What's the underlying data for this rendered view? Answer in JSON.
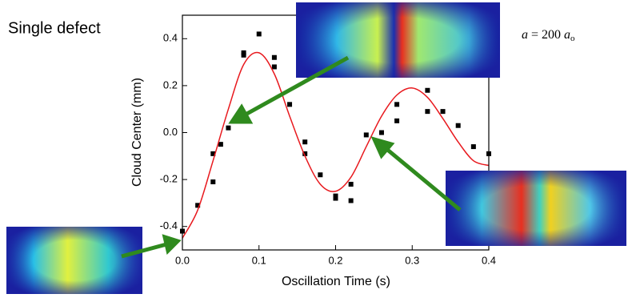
{
  "chart_data": {
    "type": "scatter",
    "title": "Single defect",
    "annotation": {
      "symbol": "a",
      "equals": "= 200",
      "unit": "a",
      "unit_subscript": "o"
    },
    "x_label": "Oscillation Time (s)",
    "y_label": "Cloud Center (mm)",
    "xlim": [
      0,
      0.4
    ],
    "ylim": [
      -0.5,
      0.5
    ],
    "xticks": [
      {
        "value": 0,
        "label": "0.0"
      },
      0.1,
      0.2,
      0.3,
      0.4
    ],
    "yticks": [
      -0.4,
      -0.2,
      {
        "value": 0,
        "label": "0.0"
      },
      0.2,
      0.4
    ],
    "series": [
      {
        "type": "scatter",
        "color": "#000000",
        "x": [
          0.0,
          0.02,
          0.04,
          0.04,
          0.05,
          0.06,
          0.08,
          0.08,
          0.1,
          0.12,
          0.12,
          0.14,
          0.16,
          0.16,
          0.18,
          0.2,
          0.2,
          0.22,
          0.22,
          0.24,
          0.26,
          0.28,
          0.28,
          0.32,
          0.32,
          0.34,
          0.36,
          0.38,
          0.4
        ],
        "y": [
          -0.42,
          -0.31,
          -0.21,
          -0.09,
          -0.05,
          0.02,
          0.34,
          0.33,
          0.42,
          0.32,
          0.28,
          0.12,
          -0.04,
          -0.09,
          -0.18,
          -0.27,
          -0.28,
          -0.22,
          -0.29,
          -0.01,
          0.0,
          0.12,
          0.05,
          0.18,
          0.09,
          0.09,
          0.03,
          -0.06,
          -0.09
        ]
      },
      {
        "type": "line",
        "color": "#e8191e",
        "x": [
          0,
          0.02,
          0.04,
          0.06,
          0.08,
          0.1,
          0.12,
          0.14,
          0.16,
          0.18,
          0.2,
          0.22,
          0.24,
          0.26,
          0.28,
          0.3,
          0.32,
          0.34,
          0.36,
          0.38,
          0.4
        ],
        "y": [
          -0.45,
          -0.33,
          -0.12,
          0.1,
          0.29,
          0.34,
          0.25,
          0.07,
          -0.1,
          -0.22,
          -0.25,
          -0.19,
          -0.06,
          0.07,
          0.16,
          0.19,
          0.15,
          0.06,
          -0.04,
          -0.12,
          -0.14
        ]
      }
    ]
  }
}
